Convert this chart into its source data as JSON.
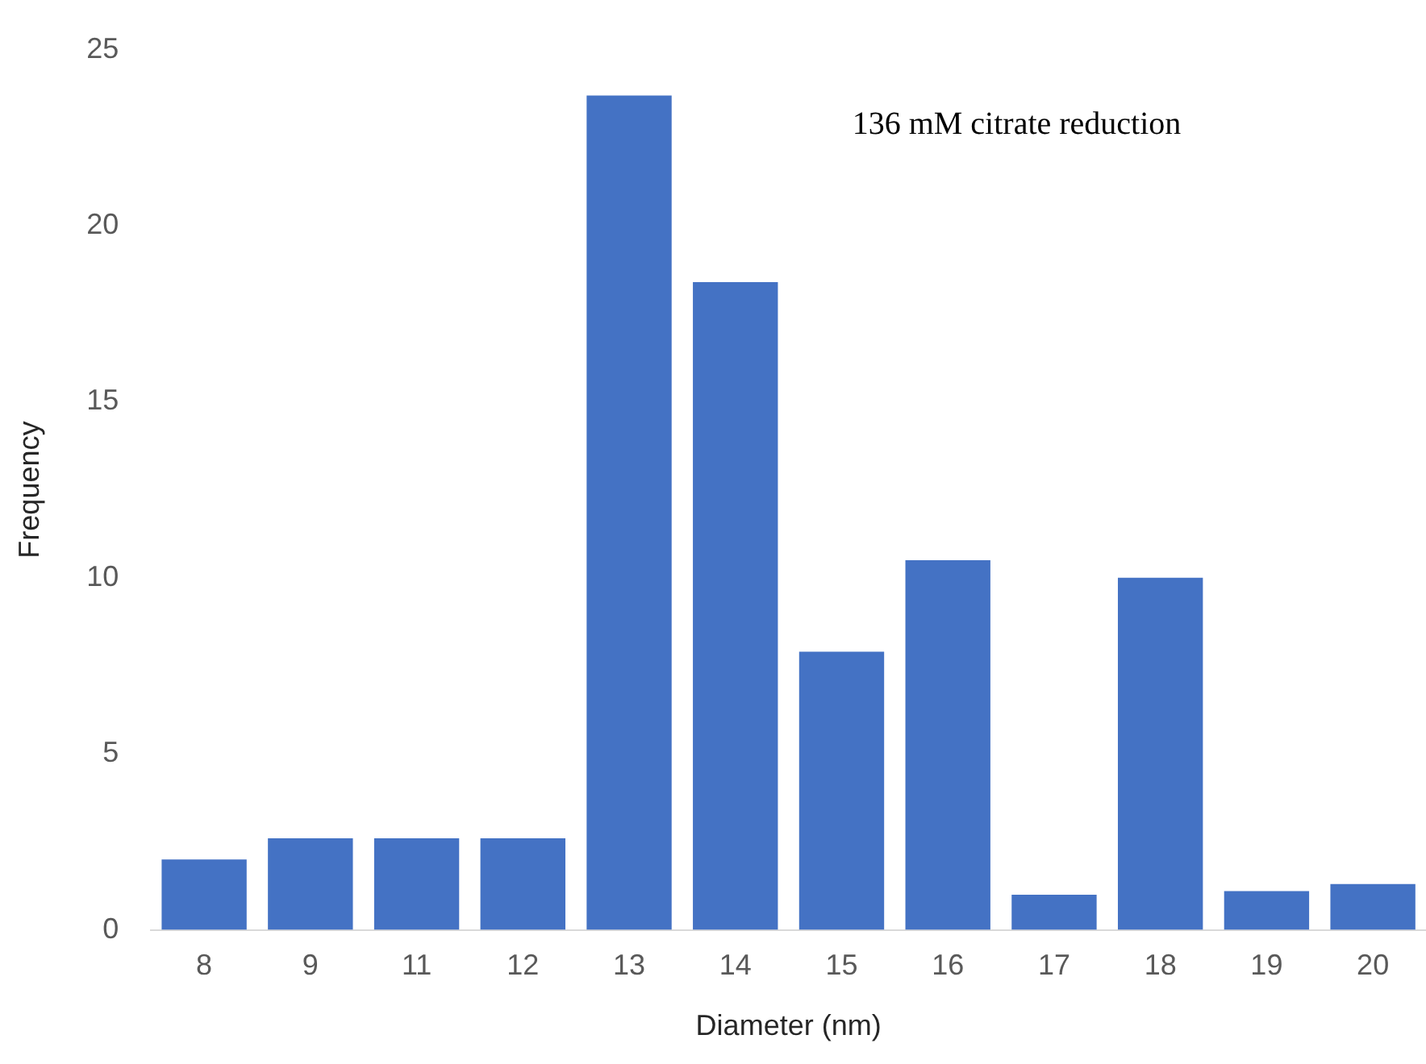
{
  "chart_data": {
    "type": "bar",
    "xlabel": "Diameter (nm)",
    "ylabel": "Frequency",
    "categories": [
      "8",
      "9",
      "11",
      "12",
      "13",
      "14",
      "15",
      "16",
      "17",
      "18",
      "19",
      "20"
    ],
    "values": [
      2.0,
      2.6,
      2.6,
      2.6,
      23.7,
      18.4,
      7.9,
      10.5,
      1.0,
      10.0,
      1.1,
      1.3
    ],
    "color": "#4472c4",
    "ylim": [
      0,
      25
    ],
    "yticks": [
      0,
      5,
      10,
      15,
      20,
      25
    ],
    "grid": false,
    "legend": false,
    "annotations": [
      "136 mM citrate reduction"
    ]
  }
}
